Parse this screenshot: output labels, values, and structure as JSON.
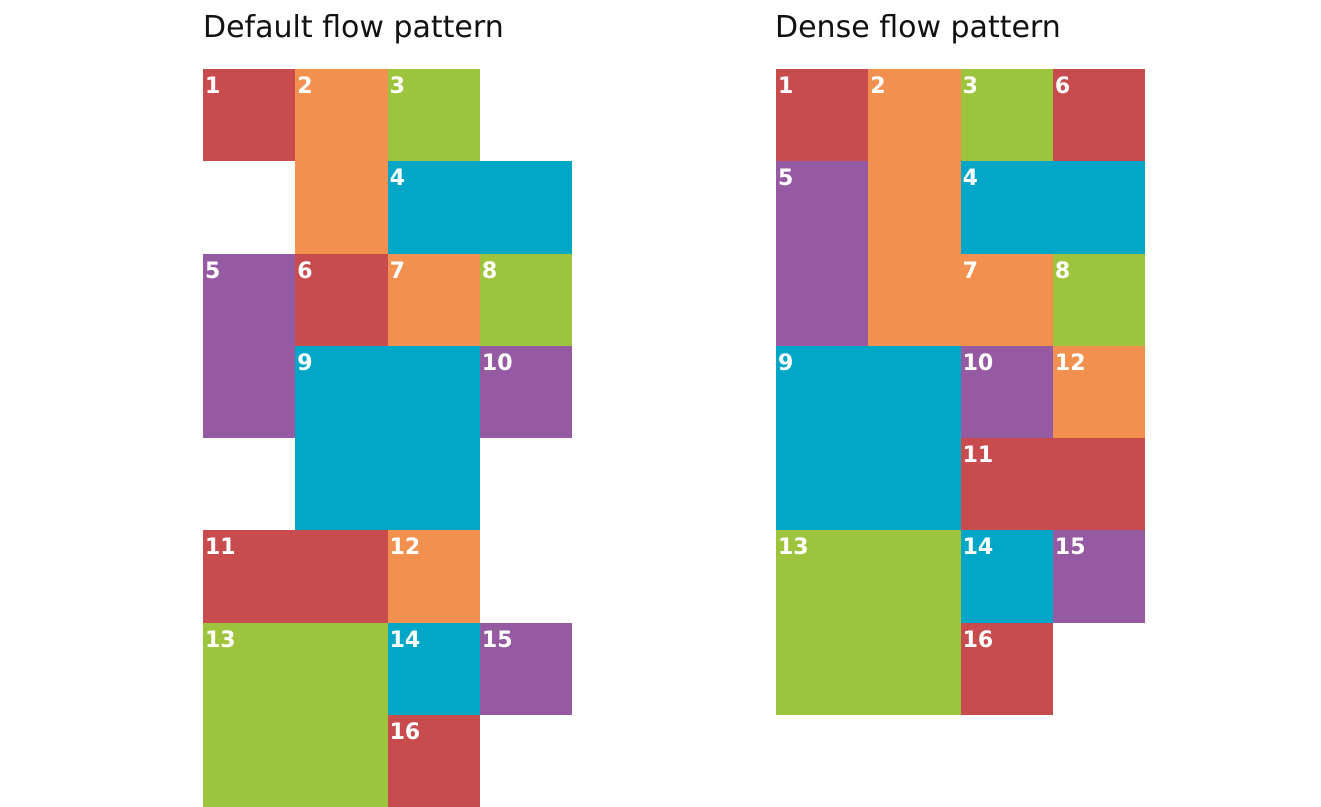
{
  "colors": {
    "red": "#c84b4e",
    "orange": "#f2914f",
    "green": "#9dc43c",
    "blue": "#02a7c8",
    "purple": "#965aa3"
  },
  "panels": [
    {
      "id": "default",
      "title": "Default flow pattern",
      "flow": "row",
      "items": [
        {
          "label": "1",
          "color": "red",
          "col_span": 1,
          "row_span": 1
        },
        {
          "label": "2",
          "color": "orange",
          "col_span": 1,
          "row_span": 2
        },
        {
          "label": "3",
          "color": "green",
          "col_span": 1,
          "row_span": 1
        },
        {
          "label": "4",
          "color": "blue",
          "col_span": 2,
          "row_span": 1
        },
        {
          "label": "5",
          "color": "purple",
          "col_span": 1,
          "row_span": 2
        },
        {
          "label": "6",
          "color": "red",
          "col_span": 1,
          "row_span": 1
        },
        {
          "label": "7",
          "color": "orange",
          "col_span": 1,
          "row_span": 1
        },
        {
          "label": "8",
          "color": "green",
          "col_span": 1,
          "row_span": 1
        },
        {
          "label": "9",
          "color": "blue",
          "col_span": 2,
          "row_span": 2
        },
        {
          "label": "10",
          "color": "purple",
          "col_span": 1,
          "row_span": 1
        },
        {
          "label": "11",
          "color": "red",
          "col_span": 2,
          "row_span": 1
        },
        {
          "label": "12",
          "color": "orange",
          "col_span": 1,
          "row_span": 1
        },
        {
          "label": "13",
          "color": "green",
          "col_span": 2,
          "row_span": 2
        },
        {
          "label": "14",
          "color": "blue",
          "col_span": 1,
          "row_span": 1
        },
        {
          "label": "15",
          "color": "purple",
          "col_span": 1,
          "row_span": 1
        },
        {
          "label": "16",
          "color": "red",
          "col_span": 1,
          "row_span": 1
        }
      ]
    },
    {
      "id": "dense",
      "title": "Dense flow pattern",
      "flow": "row dense",
      "items": [
        {
          "label": "1",
          "color": "red",
          "col_span": 1,
          "row_span": 1
        },
        {
          "label": "2",
          "color": "orange",
          "col_span": 1,
          "row_span": 3
        },
        {
          "label": "3",
          "color": "green",
          "col_span": 1,
          "row_span": 1
        },
        {
          "label": "4",
          "color": "blue",
          "col_span": 2,
          "row_span": 1
        },
        {
          "label": "5",
          "color": "purple",
          "col_span": 1,
          "row_span": 2
        },
        {
          "label": "6",
          "color": "red",
          "col_span": 1,
          "row_span": 1
        },
        {
          "label": "7",
          "color": "orange",
          "col_span": 1,
          "row_span": 1
        },
        {
          "label": "8",
          "color": "green",
          "col_span": 1,
          "row_span": 1
        },
        {
          "label": "9",
          "color": "blue",
          "col_span": 2,
          "row_span": 2
        },
        {
          "label": "10",
          "color": "purple",
          "col_span": 1,
          "row_span": 1
        },
        {
          "label": "11",
          "color": "red",
          "col_span": 2,
          "row_span": 1
        },
        {
          "label": "12",
          "color": "orange",
          "col_span": 1,
          "row_span": 1
        },
        {
          "label": "13",
          "color": "green",
          "col_span": 2,
          "row_span": 2
        },
        {
          "label": "14",
          "color": "blue",
          "col_span": 1,
          "row_span": 1
        },
        {
          "label": "15",
          "color": "purple",
          "col_span": 1,
          "row_span": 1
        },
        {
          "label": "16",
          "color": "red",
          "col_span": 1,
          "row_span": 1
        }
      ]
    }
  ]
}
